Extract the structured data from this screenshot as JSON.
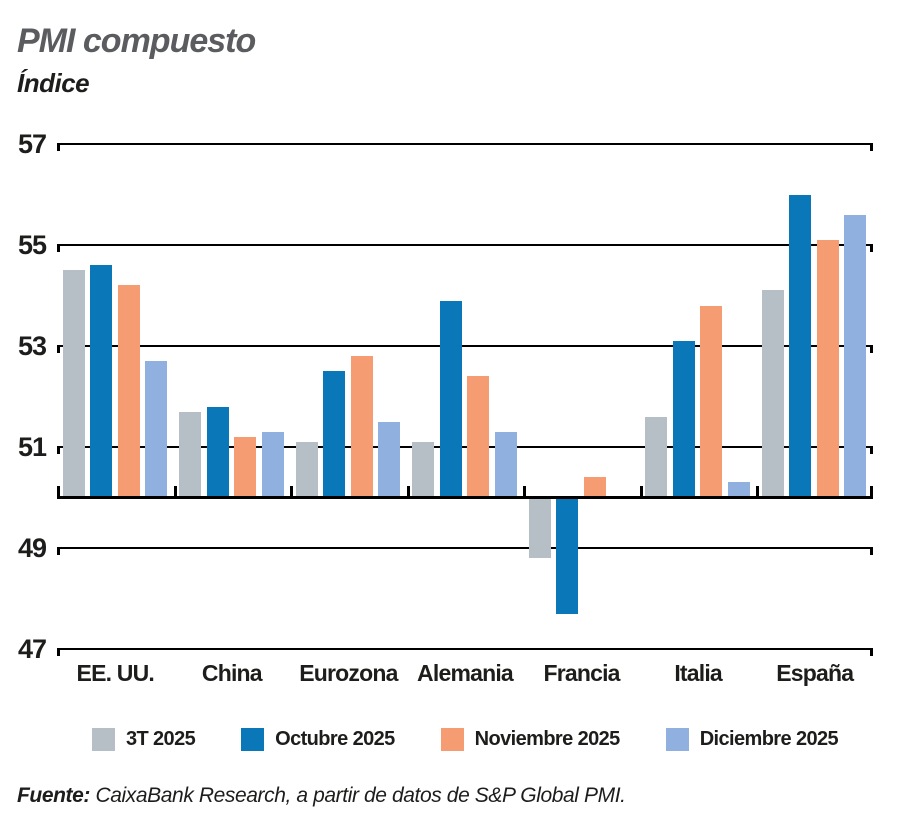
{
  "title": "PMI compuesto",
  "subtitle": "Índice",
  "source_prefix": "Fuente:",
  "source_text": " CaixaBank Research, a partir de datos de S&P Global PMI.",
  "colors": {
    "series_gray": "#b5bfc5",
    "series_blue": "#0a77b8",
    "series_orange": "#f59c72",
    "series_lightblue": "#90b0df",
    "title_gray": "#5b5c5f",
    "text_black": "#1d1d1b",
    "grid_black": "#000000",
    "background": "#ffffff"
  },
  "chart_data": {
    "type": "bar",
    "title": "PMI compuesto",
    "ylabel": "Índice",
    "categories": [
      "EE. UU.",
      "China",
      "Eurozona",
      "Alemania",
      "Francia",
      "Italia",
      "España"
    ],
    "series": [
      {
        "name": "3T 2025",
        "color": "#b5bfc5",
        "values": [
          54.5,
          51.7,
          51.1,
          51.1,
          48.8,
          51.6,
          54.1
        ]
      },
      {
        "name": "Octubre 2025",
        "color": "#0a77b8",
        "values": [
          54.6,
          51.8,
          52.5,
          53.9,
          47.7,
          53.1,
          56.0
        ]
      },
      {
        "name": "Noviembre 2025",
        "color": "#f59c72",
        "values": [
          54.2,
          51.2,
          52.8,
          52.4,
          50.4,
          53.8,
          55.1
        ]
      },
      {
        "name": "Diciembre 2025",
        "color": "#90b0df",
        "values": [
          52.7,
          51.3,
          51.5,
          51.3,
          null,
          50.3,
          55.6
        ]
      }
    ],
    "baseline": 50,
    "yticks": [
      57,
      55,
      53,
      51,
      49,
      47
    ],
    "ylim": [
      47,
      57
    ],
    "grid": true,
    "legend_position": "bottom"
  }
}
